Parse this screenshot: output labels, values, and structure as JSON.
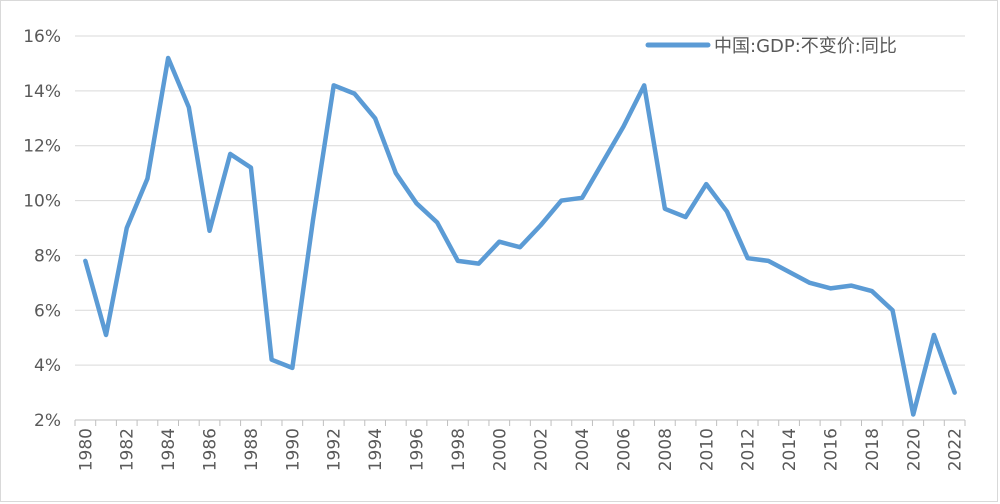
{
  "chart_data": {
    "type": "line",
    "x": [
      1980,
      1981,
      1982,
      1983,
      1984,
      1985,
      1986,
      1987,
      1988,
      1989,
      1990,
      1991,
      1992,
      1993,
      1994,
      1995,
      1996,
      1997,
      1998,
      1999,
      2000,
      2001,
      2002,
      2003,
      2004,
      2005,
      2006,
      2007,
      2008,
      2009,
      2010,
      2011,
      2012,
      2013,
      2014,
      2015,
      2016,
      2017,
      2018,
      2019,
      2020,
      2021,
      2022
    ],
    "series": [
      {
        "name": "中国:GDP:不变价:同比",
        "color": "#5b9bd5",
        "values": [
          7.8,
          5.1,
          9.0,
          10.8,
          15.2,
          13.4,
          8.9,
          11.7,
          11.2,
          4.2,
          3.9,
          9.3,
          14.2,
          13.9,
          13.0,
          11.0,
          9.9,
          9.2,
          7.8,
          7.7,
          8.5,
          8.3,
          9.1,
          10.0,
          10.1,
          11.4,
          12.7,
          14.2,
          9.7,
          9.4,
          10.6,
          9.6,
          7.9,
          7.8,
          7.4,
          7.0,
          6.8,
          6.9,
          6.7,
          6.0,
          2.2,
          5.1,
          3.0
        ]
      }
    ],
    "ylim": [
      2,
      16
    ],
    "yticks": [
      "2%",
      "4%",
      "6%",
      "8%",
      "10%",
      "12%",
      "14%",
      "16%"
    ],
    "xticks": [
      "1980",
      "1982",
      "1984",
      "1986",
      "1988",
      "1990",
      "1992",
      "1994",
      "1996",
      "1998",
      "2000",
      "2002",
      "2004",
      "2006",
      "2008",
      "2010",
      "2012",
      "2014",
      "2016",
      "2018",
      "2020",
      "2022"
    ],
    "grid": true,
    "legend_position": "top-right",
    "title": "",
    "xlabel": "",
    "ylabel": ""
  }
}
